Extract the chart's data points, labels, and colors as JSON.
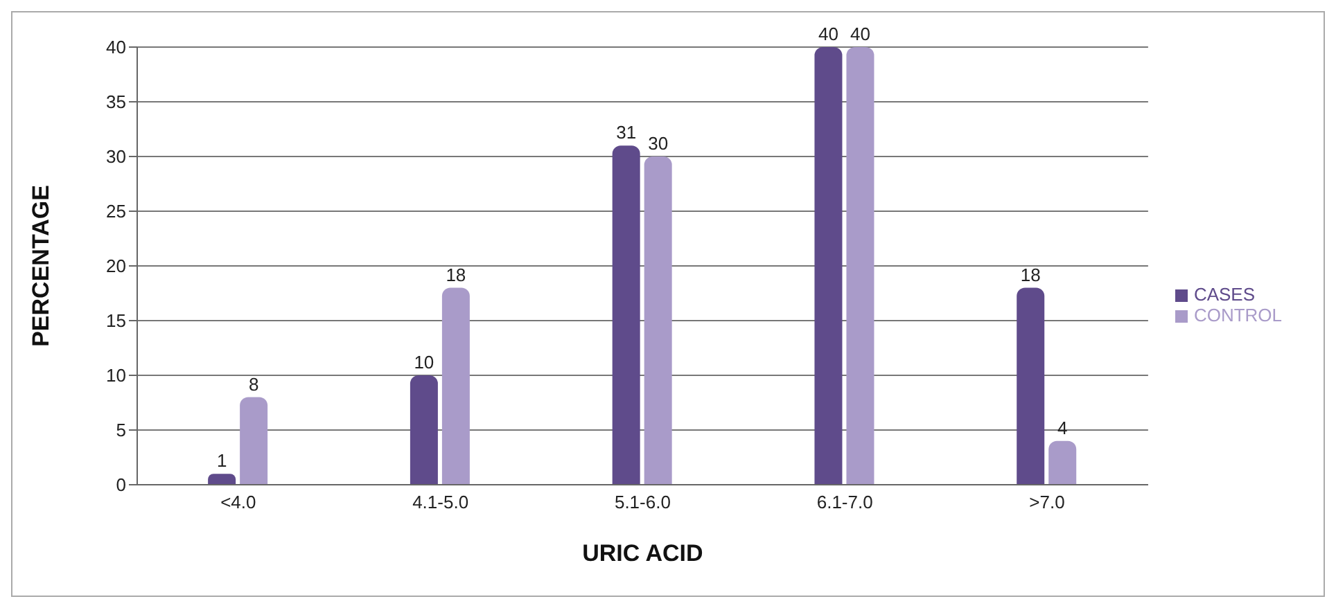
{
  "chart_data": {
    "type": "bar",
    "xlabel": "URIC ACID",
    "ylabel": "PERCENTAGE",
    "categories": [
      "<4.0",
      "4.1-5.0",
      "5.1-6.0",
      "6.1-7.0",
      ">7.0"
    ],
    "series": [
      {
        "name": "CASES",
        "color": "#5f4b8b",
        "values": [
          1,
          10,
          31,
          40,
          18
        ]
      },
      {
        "name": "CONTROL",
        "color": "#a99bc9",
        "values": [
          8,
          18,
          30,
          40,
          4
        ]
      }
    ],
    "ylim": [
      0,
      40
    ],
    "yticks": [
      0,
      5,
      10,
      15,
      20,
      25,
      30,
      35,
      40
    ],
    "grid": "y",
    "legend": "right",
    "data_labels": true
  }
}
